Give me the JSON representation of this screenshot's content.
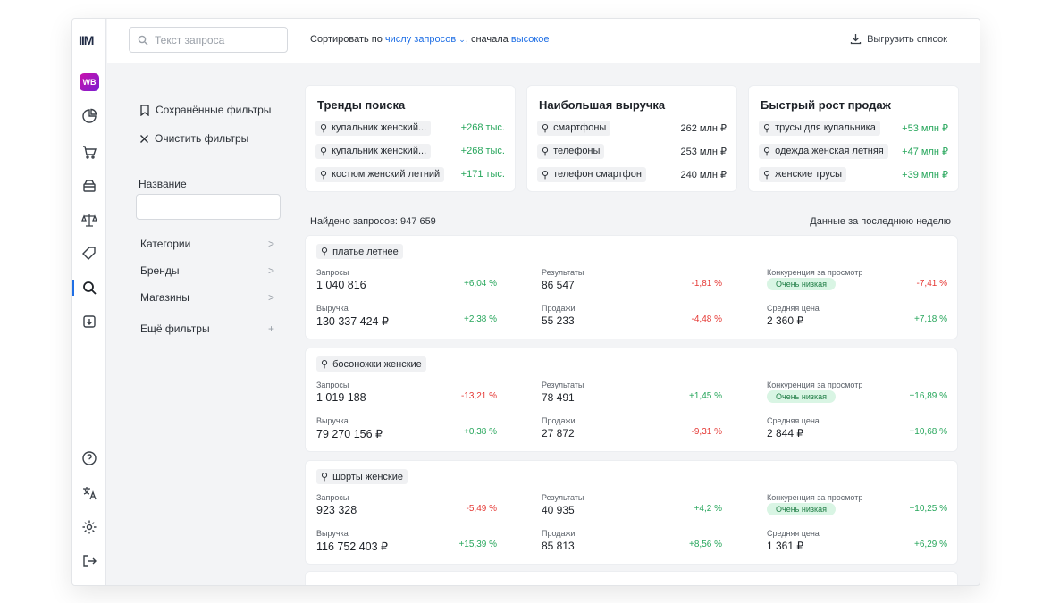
{
  "app": {
    "logo": "IIM",
    "marketplace_badge": "WB"
  },
  "rail_icons": [
    "pie-chart-icon",
    "cart-icon",
    "box-icon",
    "scales-icon",
    "tag-icon",
    "search-icon",
    "import-icon",
    "help-icon",
    "translate-icon",
    "gear-icon",
    "logout-icon"
  ],
  "topbar": {
    "search_placeholder": "Текст запроса",
    "sort_prefix": "Сортировать по",
    "sort_field": "числу запросов",
    "sort_mid": ", сначала",
    "sort_order": "высокое",
    "export_label": "Выгрузить список"
  },
  "sidebar": {
    "saved_filters": "Сохранённые фильтры",
    "clear_filters": "Очистить фильтры",
    "name_label": "Название",
    "filters": [
      {
        "label": "Категории",
        "icon": ">"
      },
      {
        "label": "Бренды",
        "icon": ">"
      },
      {
        "label": "Магазины",
        "icon": ">"
      },
      {
        "label": "Ещё фильтры",
        "icon": "+"
      }
    ]
  },
  "tiles": [
    {
      "title": "Тренды поиска",
      "rows": [
        {
          "query": "купальник женский...",
          "value": "+268 тыс.",
          "tone": "pos"
        },
        {
          "query": "купальник женский...",
          "value": "+268 тыс.",
          "tone": "pos"
        },
        {
          "query": "костюм женский летний",
          "value": "+171 тыс.",
          "tone": "pos"
        }
      ]
    },
    {
      "title": "Наибольшая выручка",
      "rows": [
        {
          "query": "смартфоны",
          "value": "262 млн ₽",
          "tone": "dark"
        },
        {
          "query": "телефоны",
          "value": "253 млн ₽",
          "tone": "dark"
        },
        {
          "query": "телефон смартфон",
          "value": "240 млн ₽",
          "tone": "dark"
        }
      ]
    },
    {
      "title": "Быстрый рост продаж",
      "rows": [
        {
          "query": "трусы для купальника",
          "value": "+53 млн ₽",
          "tone": "pos"
        },
        {
          "query": "одежда женская летняя",
          "value": "+47 млн ₽",
          "tone": "pos"
        },
        {
          "query": "женские трусы",
          "value": "+39 млн ₽",
          "tone": "pos"
        }
      ]
    }
  ],
  "results": {
    "found_label": "Найдено запросов: 947 659",
    "period_label": "Данные за последнюю неделю",
    "labels": {
      "requests": "Запросы",
      "revenue": "Выручка",
      "results": "Результаты",
      "sales": "Продажи",
      "competition": "Конкуренция за просмотр",
      "avg_price": "Средняя цена"
    },
    "cards": [
      {
        "query": "платье летнее",
        "requests": "1 040 816",
        "requests_chg": "+6,04 %",
        "revenue": "130 337 424 ₽",
        "revenue_chg": "+2,38 %",
        "results": "86 547",
        "results_chg": "-1,81 %",
        "sales": "55 233",
        "sales_chg": "-4,48 %",
        "competition": "Очень низкая",
        "competition_chg": "-7,41 %",
        "avg_price": "2 360 ₽",
        "avg_price_chg": "+7,18 %"
      },
      {
        "query": "босоножки женские",
        "requests": "1 019 188",
        "requests_chg": "-13,21 %",
        "revenue": "79 270 156 ₽",
        "revenue_chg": "+0,38 %",
        "results": "78 491",
        "results_chg": "+1,45 %",
        "sales": "27 872",
        "sales_chg": "-9,31 %",
        "competition": "Очень низкая",
        "competition_chg": "+16,89 %",
        "avg_price": "2 844 ₽",
        "avg_price_chg": "+10,68 %"
      },
      {
        "query": "шорты женские",
        "requests": "923 328",
        "requests_chg": "-5,49 %",
        "revenue": "116 752 403 ₽",
        "revenue_chg": "+15,39 %",
        "results": "40 935",
        "results_chg": "+4,2 %",
        "sales": "85 813",
        "sales_chg": "+8,56 %",
        "competition": "Очень низкая",
        "competition_chg": "+10,25 %",
        "avg_price": "1 361 ₽",
        "avg_price_chg": "+6,29 %"
      }
    ]
  },
  "colors": {
    "accent": "#1f6fe5",
    "positive": "#26a65b",
    "negative": "#e53935",
    "badge_bg": "#d9f5e4"
  }
}
